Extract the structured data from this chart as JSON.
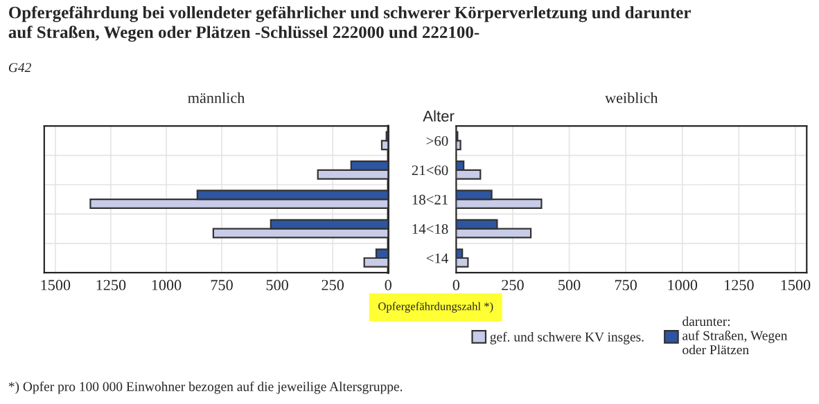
{
  "chart_data": [
    {
      "type": "bar",
      "orientation": "horizontal",
      "title": "männlich",
      "xlabel": "Opfergefährdungszahl *)",
      "annotations": [
        "Opfergefährdung bei vollendeter gefährlicher und schwerer Körperverletzung und darunter\nauf Straßen, Wegen oder Plätzen -Schlüssel 222000 und 222100-",
        "G42",
        "*) Opfer pro 100 000 Einwohner bezogen auf die jeweilige Altersgruppe."
      ],
      "categories": [
        null,
        null,
        null,
        null,
        null
      ],
      "series": [
        {
          "color": "#c8cce8",
          "values": [
            29,
            317,
            1342,
            788,
            108
          ]
        },
        {
          "color": "#2e55a0",
          "values": [
            8,
            167,
            860,
            529,
            54
          ]
        }
      ],
      "xlim": [
        1550,
        0
      ],
      "xticks": [
        1500,
        1250,
        1000,
        750,
        500,
        250,
        0
      ],
      "grid": true,
      "tick_labels": "x"
    },
    {
      "type": "bar",
      "orientation": "horizontal",
      "title": "weiblich",
      "ylabel": "Alter",
      "categories": [
        ">60",
        "21<60",
        "18<21",
        "14<18",
        "<14"
      ],
      "series": [
        {
          "name": "gef. und schwere KV insges.",
          "color": "#c8cce8",
          "values": [
            19,
            107,
            377,
            330,
            52
          ]
        },
        {
          "name": "darunter:\nauf Straßen, Wegen\noder Plätzen",
          "color": "#2e55a0",
          "values": [
            6,
            33,
            157,
            181,
            27
          ]
        }
      ],
      "xlim": [
        0,
        1550
      ],
      "xticks": [
        0,
        250,
        500,
        750,
        1000,
        1250,
        1500
      ],
      "grid": true,
      "legend": "bottom right"
    }
  ]
}
